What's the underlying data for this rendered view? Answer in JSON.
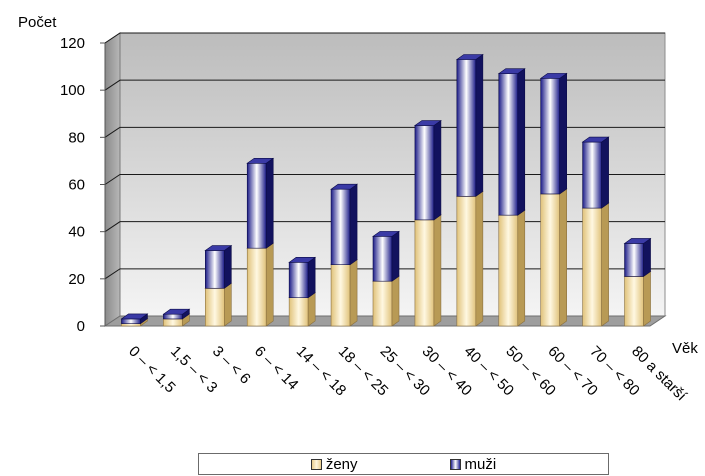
{
  "chart_data": {
    "type": "bar",
    "stacked": true,
    "three_d": true,
    "ylabel": "Počet",
    "xlabel": "Věk",
    "ylim": [
      0,
      120
    ],
    "yticks": [
      0,
      20,
      40,
      60,
      80,
      100,
      120
    ],
    "grid": true,
    "legend_position": "bottom",
    "categories": [
      "0 – < 1,5",
      "1,5 – < 3",
      "3 – < 6",
      "6 – < 14",
      "14 – < 18",
      "18 – < 25",
      "25 – < 30",
      "30 – < 40",
      "40 – < 50",
      "50 – < 60",
      "60 – < 70",
      "70 – < 80",
      "80 a starší"
    ],
    "series": [
      {
        "name": "ženy",
        "values": [
          1,
          3,
          16,
          33,
          12,
          26,
          19,
          45,
          55,
          47,
          56,
          50,
          21
        ],
        "color": "#e8cc8c"
      },
      {
        "name": "muži",
        "values": [
          2,
          2,
          16,
          36,
          15,
          32,
          19,
          40,
          58,
          60,
          49,
          28,
          14
        ],
        "color": "#242492"
      }
    ]
  }
}
